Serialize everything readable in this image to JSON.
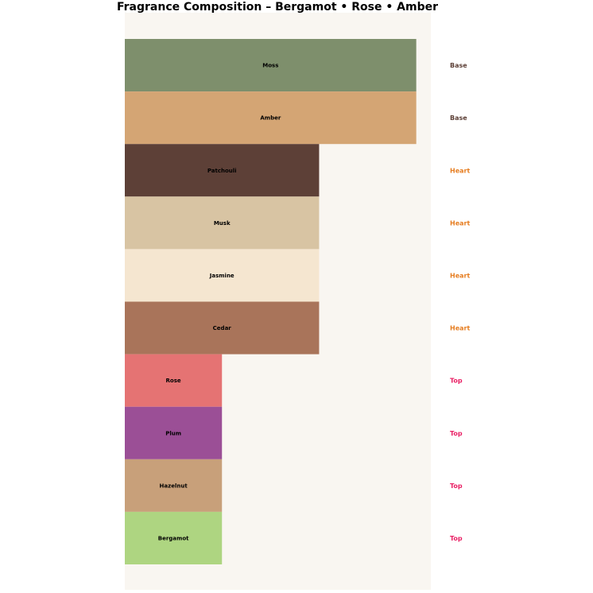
{
  "chart_data": {
    "type": "bar",
    "orientation": "horizontal",
    "title": "Fragrance Composition – Bergamot • Rose • Amber",
    "xlabel": "",
    "ylabel": "",
    "xlim": [
      0,
      3.15
    ],
    "grid": false,
    "background": "#f9f6f1",
    "categories": [
      "Moss",
      "Amber",
      "Patchouli",
      "Musk",
      "Jasmine",
      "Cedar",
      "Rose",
      "Plum",
      "Hazelnut",
      "Bergamot"
    ],
    "values": [
      3,
      3,
      2,
      2,
      2,
      2,
      1,
      1,
      1,
      1
    ],
    "colors": [
      "#7e8f6c",
      "#d4a574",
      "#5d4037",
      "#d8c4a3",
      "#f5e6d0",
      "#a9745a",
      "#e57373",
      "#9b4f96",
      "#c8a07a",
      "#aed581"
    ],
    "notes": [
      "Base",
      "Base",
      "Heart",
      "Heart",
      "Heart",
      "Heart",
      "Top",
      "Top",
      "Top",
      "Top"
    ],
    "note_colors": {
      "Base": "#5d4037",
      "Heart": "#e67e22",
      "Top": "#e91e63"
    }
  }
}
